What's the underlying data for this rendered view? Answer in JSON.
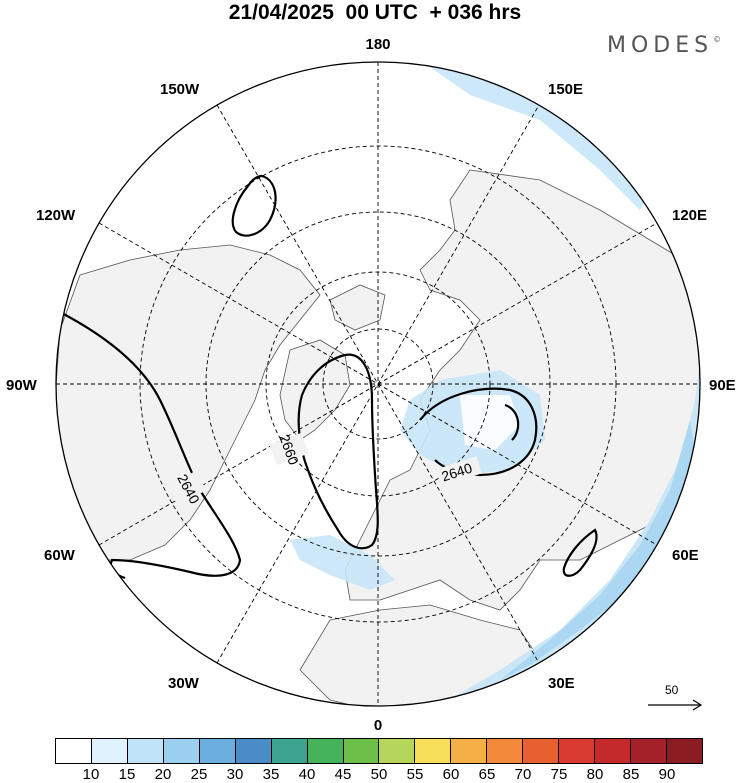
{
  "title": "21/04/2025  00 UTC  + 036 hrs",
  "brand": "MODES",
  "brand_mark": "©",
  "map": {
    "projection": "north-polar-stereographic",
    "longitude_labels": {
      "top": "180",
      "bottom": "0",
      "left": "90W",
      "right": "90E",
      "upper_left_1": "150W",
      "upper_left_2": "120W",
      "lower_left_1": "60W",
      "lower_left_2": "30W",
      "upper_right_1": "150E",
      "upper_right_2": "120E",
      "lower_right_1": "60E",
      "lower_right_2": "30E"
    },
    "contour_labels": {
      "c1": "2640",
      "c2": "2660",
      "c3": "2640"
    },
    "land_color": "#f2f2f2",
    "ocean_color": "#ffffff",
    "shading_color": "#c8e6f7",
    "shading_color_strong": "#a9d5f1"
  },
  "reference_vector": {
    "label": "50"
  },
  "colorbar": {
    "ticks": [
      "10",
      "15",
      "20",
      "25",
      "30",
      "35",
      "40",
      "45",
      "50",
      "55",
      "60",
      "65",
      "70",
      "75",
      "80",
      "85",
      "90"
    ],
    "colors": [
      "#ffffff",
      "#dff2fd",
      "#bfe4f8",
      "#9cd0f0",
      "#6aaedf",
      "#4a8dc6",
      "#3da58f",
      "#45b35a",
      "#6cc04a",
      "#b5d65a",
      "#f7df5a",
      "#f5b045",
      "#f08a3a",
      "#e8602f",
      "#d93a2f",
      "#c42a2a",
      "#a5212a",
      "#8a1c22"
    ]
  }
}
